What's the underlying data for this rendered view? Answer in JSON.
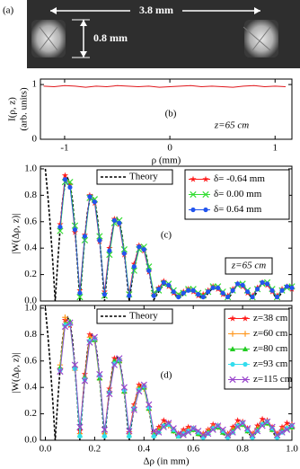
{
  "image": {
    "label": "(a)",
    "width_label": "3.8 mm",
    "height_label": "0.8 mm"
  },
  "chart_data": [
    {
      "type": "line",
      "label": "(b)",
      "annotation": "z=65 cm",
      "ylabel": [
        "I(ρ, z)",
        "(arb. units)"
      ],
      "xlabel": "ρ (mm)",
      "xlim": [
        -1.23,
        1.16
      ],
      "xticks": [
        -1,
        0,
        1
      ],
      "ylim": [
        0,
        1.1
      ],
      "yticks": [
        0,
        1
      ],
      "x": [
        -1.2,
        -1.1,
        -1.0,
        -0.9,
        -0.8,
        -0.7,
        -0.6,
        -0.5,
        -0.4,
        -0.3,
        -0.2,
        -0.1,
        0.0,
        0.1,
        0.2,
        0.3,
        0.4,
        0.5,
        0.6,
        0.7,
        0.8,
        0.9,
        1.0,
        1.1
      ],
      "series": [
        {
          "color": "#e0161b",
          "values": [
            0.97,
            0.96,
            0.98,
            0.97,
            0.95,
            0.97,
            0.96,
            0.98,
            0.97,
            0.96,
            0.97,
            0.95,
            0.96,
            0.97,
            0.98,
            0.96,
            0.97,
            0.96,
            0.95,
            0.97,
            0.98,
            0.96,
            0.97,
            0.96
          ]
        }
      ]
    },
    {
      "type": "line",
      "label": "(c)",
      "annotation": "z=65 cm",
      "ylabel": "|W(Δρ, z)|",
      "xlim": [
        -0.02,
        1.0
      ],
      "ylim": [
        0,
        1.02
      ],
      "yticks": [
        {
          "value": 0,
          "label": "0.0"
        },
        0.2,
        0.4,
        0.6,
        0.8,
        {
          "value": 1,
          "label": "1.0"
        }
      ],
      "legend": "upper right",
      "theory": {
        "name": "Theory",
        "color": "#000000",
        "x": [
          0,
          0.01,
          0.02,
          0.03,
          0.04,
          0.05,
          0.06,
          0.07,
          0.08,
          0.09,
          0.1,
          0.11,
          0.12,
          0.13,
          0.14,
          0.15,
          0.16,
          0.17,
          0.18,
          0.19,
          0.2,
          0.21,
          0.22,
          0.23,
          0.24,
          0.25,
          0.26,
          0.27,
          0.28,
          0.29,
          0.3,
          0.31,
          0.32,
          0.33,
          0.34,
          0.35,
          0.36,
          0.37,
          0.38,
          0.39,
          0.4,
          0.41,
          0.42,
          0.43,
          0.44,
          0.45,
          0.46,
          0.47,
          0.48,
          0.49,
          0.5,
          0.51,
          0.52,
          0.53,
          0.54,
          0.55,
          0.56,
          0.57,
          0.58,
          0.59,
          0.6,
          0.61,
          0.62,
          0.63,
          0.64,
          0.65,
          0.66,
          0.67,
          0.68,
          0.69,
          0.7,
          0.71,
          0.72,
          0.73,
          0.74,
          0.75,
          0.76,
          0.77,
          0.78,
          0.79,
          0.8,
          0.81,
          0.82,
          0.83,
          0.84,
          0.85,
          0.86,
          0.87,
          0.88,
          0.89,
          0.9,
          0.91,
          0.92,
          0.93,
          0.94,
          0.95,
          0.96,
          0.97,
          0.98,
          0.99,
          1.0
        ],
        "values": [
          1.0,
          0.8,
          0.57,
          0.3,
          0.0,
          0.29,
          0.55,
          0.76,
          0.89,
          0.93,
          0.89,
          0.76,
          0.55,
          0.29,
          0.0,
          0.25,
          0.48,
          0.66,
          0.77,
          0.8,
          0.76,
          0.65,
          0.47,
          0.25,
          0.0,
          0.2,
          0.37,
          0.51,
          0.6,
          0.63,
          0.6,
          0.51,
          0.37,
          0.19,
          0.0,
          0.13,
          0.25,
          0.34,
          0.4,
          0.42,
          0.4,
          0.34,
          0.24,
          0.13,
          0.01,
          0.04,
          0.07,
          0.1,
          0.12,
          0.13,
          0.12,
          0.1,
          0.07,
          0.04,
          0.02,
          0.03,
          0.05,
          0.07,
          0.08,
          0.08,
          0.08,
          0.07,
          0.05,
          0.03,
          0.02,
          0.03,
          0.06,
          0.08,
          0.1,
          0.1,
          0.1,
          0.08,
          0.06,
          0.03,
          0.02,
          0.04,
          0.07,
          0.1,
          0.12,
          0.13,
          0.12,
          0.1,
          0.07,
          0.04,
          0.02,
          0.04,
          0.08,
          0.11,
          0.13,
          0.14,
          0.13,
          0.11,
          0.08,
          0.04,
          0.02,
          0.04,
          0.07,
          0.09,
          0.1,
          0.11,
          0.1
        ]
      },
      "x": [
        0.06,
        0.08,
        0.1,
        0.12,
        0.14,
        0.16,
        0.18,
        0.2,
        0.22,
        0.24,
        0.26,
        0.28,
        0.3,
        0.32,
        0.34,
        0.36,
        0.38,
        0.4,
        0.42,
        0.44,
        0.46,
        0.48,
        0.5,
        0.52,
        0.54,
        0.56,
        0.58,
        0.6,
        0.62,
        0.64,
        0.66,
        0.68,
        0.7,
        0.72,
        0.74,
        0.76,
        0.78,
        0.8,
        0.82,
        0.84,
        0.86,
        0.88,
        0.9,
        0.92,
        0.94,
        0.96,
        0.98,
        1.0
      ],
      "series": [
        {
          "name": "δ= -0.64 mm",
          "color": "#ff1a1a",
          "marker": "star",
          "values": [
            0.58,
            0.95,
            0.88,
            0.52,
            0.08,
            0.5,
            0.8,
            0.74,
            0.45,
            0.07,
            0.4,
            0.62,
            0.58,
            0.35,
            0.06,
            0.28,
            0.42,
            0.38,
            0.22,
            0.05,
            0.1,
            0.15,
            0.11,
            0.06,
            0.04,
            0.07,
            0.09,
            0.07,
            0.04,
            0.05,
            0.08,
            0.11,
            0.09,
            0.05,
            0.04,
            0.09,
            0.13,
            0.11,
            0.06,
            0.04,
            0.1,
            0.14,
            0.12,
            0.07,
            0.04,
            0.09,
            0.11,
            0.09
          ]
        },
        {
          "name": "δ= 0.00 mm",
          "color": "#33dd33",
          "marker": "x",
          "values": [
            0.53,
            0.9,
            0.9,
            0.57,
            0.03,
            0.46,
            0.78,
            0.77,
            0.49,
            0.04,
            0.35,
            0.59,
            0.61,
            0.39,
            0.05,
            0.23,
            0.39,
            0.41,
            0.26,
            0.06,
            0.08,
            0.13,
            0.13,
            0.08,
            0.05,
            0.06,
            0.09,
            0.09,
            0.06,
            0.04,
            0.07,
            0.11,
            0.11,
            0.07,
            0.03,
            0.08,
            0.12,
            0.13,
            0.08,
            0.03,
            0.09,
            0.13,
            0.14,
            0.09,
            0.03,
            0.08,
            0.1,
            0.11
          ]
        },
        {
          "name": "δ= 0.64 mm",
          "color": "#2255ee",
          "marker": "circle",
          "values": [
            0.56,
            0.92,
            0.86,
            0.54,
            0.06,
            0.49,
            0.79,
            0.75,
            0.46,
            0.05,
            0.38,
            0.61,
            0.59,
            0.36,
            0.04,
            0.26,
            0.41,
            0.39,
            0.23,
            0.04,
            0.09,
            0.14,
            0.12,
            0.07,
            0.03,
            0.06,
            0.08,
            0.08,
            0.05,
            0.03,
            0.07,
            0.1,
            0.1,
            0.06,
            0.03,
            0.08,
            0.13,
            0.12,
            0.07,
            0.03,
            0.09,
            0.14,
            0.13,
            0.08,
            0.03,
            0.08,
            0.11,
            0.1
          ]
        }
      ]
    },
    {
      "type": "line",
      "label": "(d)",
      "ylabel": "|W(Δρ, z)|",
      "xlabel": "Δρ (in mm)",
      "xlim": [
        -0.02,
        1.0
      ],
      "ylim": [
        0,
        1.02
      ],
      "xticks": [
        {
          "value": 0,
          "label": "0.0"
        },
        0.2,
        0.4,
        0.6,
        0.8,
        {
          "value": 1,
          "label": "1.0"
        }
      ],
      "yticks": [
        {
          "value": 0,
          "label": "0.0"
        },
        0.2,
        0.4,
        0.6,
        0.8,
        {
          "value": 1,
          "label": "1.0"
        }
      ],
      "legend": "upper right",
      "theory": {
        "name": "Theory",
        "color": "#000000",
        "x": [
          0,
          0.01,
          0.02,
          0.03,
          0.04,
          0.05,
          0.06,
          0.07,
          0.08,
          0.09,
          0.1,
          0.11,
          0.12,
          0.13,
          0.14,
          0.15,
          0.16,
          0.17,
          0.18,
          0.19,
          0.2,
          0.21,
          0.22,
          0.23,
          0.24,
          0.25,
          0.26,
          0.27,
          0.28,
          0.29,
          0.3,
          0.31,
          0.32,
          0.33,
          0.34,
          0.35,
          0.36,
          0.37,
          0.38,
          0.39,
          0.4,
          0.41,
          0.42,
          0.43,
          0.44,
          0.45,
          0.46,
          0.47,
          0.48,
          0.49,
          0.5,
          0.51,
          0.52,
          0.53,
          0.54,
          0.55,
          0.56,
          0.57,
          0.58,
          0.59,
          0.6,
          0.61,
          0.62,
          0.63,
          0.64,
          0.65,
          0.66,
          0.67,
          0.68,
          0.69,
          0.7,
          0.71,
          0.72,
          0.73,
          0.74,
          0.75,
          0.76,
          0.77,
          0.78,
          0.79,
          0.8,
          0.81,
          0.82,
          0.83,
          0.84,
          0.85,
          0.86,
          0.87,
          0.88,
          0.89,
          0.9,
          0.91,
          0.92,
          0.93,
          0.94,
          0.95,
          0.96,
          0.97,
          0.98,
          0.99,
          1.0
        ],
        "values": [
          1.0,
          0.8,
          0.57,
          0.3,
          0.0,
          0.29,
          0.55,
          0.76,
          0.89,
          0.93,
          0.89,
          0.76,
          0.55,
          0.29,
          0.0,
          0.25,
          0.48,
          0.66,
          0.77,
          0.8,
          0.76,
          0.65,
          0.47,
          0.25,
          0.0,
          0.2,
          0.37,
          0.51,
          0.6,
          0.63,
          0.6,
          0.51,
          0.37,
          0.19,
          0.0,
          0.13,
          0.25,
          0.34,
          0.4,
          0.42,
          0.4,
          0.34,
          0.24,
          0.13,
          0.01,
          0.04,
          0.07,
          0.1,
          0.12,
          0.13,
          0.12,
          0.1,
          0.07,
          0.04,
          0.02,
          0.03,
          0.05,
          0.07,
          0.08,
          0.08,
          0.08,
          0.07,
          0.05,
          0.03,
          0.02,
          0.03,
          0.06,
          0.08,
          0.1,
          0.1,
          0.1,
          0.08,
          0.06,
          0.03,
          0.02,
          0.04,
          0.07,
          0.1,
          0.12,
          0.13,
          0.12,
          0.1,
          0.07,
          0.04,
          0.02,
          0.04,
          0.08,
          0.11,
          0.13,
          0.14,
          0.13,
          0.11,
          0.08,
          0.04,
          0.02,
          0.04,
          0.07,
          0.09,
          0.1,
          0.11,
          0.1
        ]
      },
      "x": [
        0.06,
        0.08,
        0.1,
        0.12,
        0.14,
        0.16,
        0.18,
        0.2,
        0.22,
        0.24,
        0.26,
        0.28,
        0.3,
        0.32,
        0.34,
        0.36,
        0.38,
        0.4,
        0.42,
        0.44,
        0.46,
        0.48,
        0.5,
        0.52,
        0.54,
        0.56,
        0.58,
        0.6,
        0.62,
        0.64,
        0.66,
        0.68,
        0.7,
        0.72,
        0.74,
        0.76,
        0.78,
        0.8,
        0.82,
        0.84,
        0.86,
        0.88,
        0.9,
        0.92,
        0.94,
        0.96,
        0.98,
        1.0
      ],
      "series": [
        {
          "name": "z=38 cm",
          "color": "#ff1a1a",
          "marker": "star",
          "values": [
            0.54,
            0.91,
            0.87,
            0.55,
            0.07,
            0.5,
            0.8,
            0.77,
            0.48,
            0.06,
            0.39,
            0.62,
            0.61,
            0.38,
            0.06,
            0.27,
            0.42,
            0.41,
            0.25,
            0.06,
            0.1,
            0.15,
            0.13,
            0.08,
            0.05,
            0.08,
            0.1,
            0.09,
            0.06,
            0.05,
            0.08,
            0.12,
            0.11,
            0.07,
            0.05,
            0.1,
            0.15,
            0.14,
            0.09,
            0.05,
            0.11,
            0.16,
            0.15,
            0.1,
            0.05,
            0.1,
            0.13,
            0.12
          ]
        },
        {
          "name": "z=60 cm",
          "color": "#ff9922",
          "marker": "plus",
          "values": [
            0.57,
            0.93,
            0.89,
            0.53,
            0.05,
            0.47,
            0.78,
            0.75,
            0.46,
            0.05,
            0.36,
            0.59,
            0.59,
            0.36,
            0.05,
            0.25,
            0.4,
            0.39,
            0.23,
            0.05,
            0.08,
            0.12,
            0.11,
            0.07,
            0.04,
            0.06,
            0.08,
            0.08,
            0.05,
            0.04,
            0.07,
            0.1,
            0.1,
            0.06,
            0.04,
            0.08,
            0.12,
            0.12,
            0.07,
            0.04,
            0.09,
            0.13,
            0.13,
            0.08,
            0.04,
            0.08,
            0.1,
            0.1
          ]
        },
        {
          "name": "z=80 cm",
          "color": "#22cc22",
          "marker": "triangle",
          "values": [
            0.55,
            0.88,
            0.9,
            0.56,
            0.04,
            0.48,
            0.76,
            0.76,
            0.47,
            0.04,
            0.37,
            0.6,
            0.6,
            0.37,
            0.04,
            0.24,
            0.39,
            0.4,
            0.24,
            0.04,
            0.07,
            0.11,
            0.12,
            0.07,
            0.03,
            0.05,
            0.07,
            0.08,
            0.05,
            0.03,
            0.06,
            0.09,
            0.1,
            0.06,
            0.03,
            0.07,
            0.11,
            0.12,
            0.07,
            0.03,
            0.08,
            0.12,
            0.13,
            0.08,
            0.03,
            0.07,
            0.09,
            0.1
          ]
        },
        {
          "name": "z=93 cm",
          "color": "#33ddee",
          "marker": "circle",
          "values": [
            0.53,
            0.87,
            0.88,
            0.54,
            0.03,
            0.46,
            0.75,
            0.77,
            0.49,
            0.03,
            0.36,
            0.58,
            0.61,
            0.38,
            0.03,
            0.24,
            0.38,
            0.41,
            0.25,
            0.03,
            0.06,
            0.11,
            0.12,
            0.08,
            0.03,
            0.05,
            0.07,
            0.09,
            0.06,
            0.02,
            0.05,
            0.09,
            0.11,
            0.07,
            0.02,
            0.06,
            0.11,
            0.13,
            0.08,
            0.02,
            0.07,
            0.12,
            0.14,
            0.09,
            0.02,
            0.06,
            0.09,
            0.11
          ]
        },
        {
          "name": "z=115 cm",
          "color": "#9944cc",
          "marker": "x",
          "values": [
            0.52,
            0.86,
            0.89,
            0.57,
            0.1,
            0.45,
            0.74,
            0.78,
            0.5,
            0.08,
            0.35,
            0.57,
            0.62,
            0.4,
            0.07,
            0.23,
            0.37,
            0.42,
            0.27,
            0.07,
            0.06,
            0.1,
            0.13,
            0.09,
            0.05,
            0.04,
            0.06,
            0.09,
            0.07,
            0.04,
            0.05,
            0.08,
            0.11,
            0.08,
            0.04,
            0.06,
            0.1,
            0.13,
            0.09,
            0.04,
            0.07,
            0.11,
            0.14,
            0.1,
            0.04,
            0.06,
            0.08,
            0.11
          ]
        }
      ]
    }
  ]
}
